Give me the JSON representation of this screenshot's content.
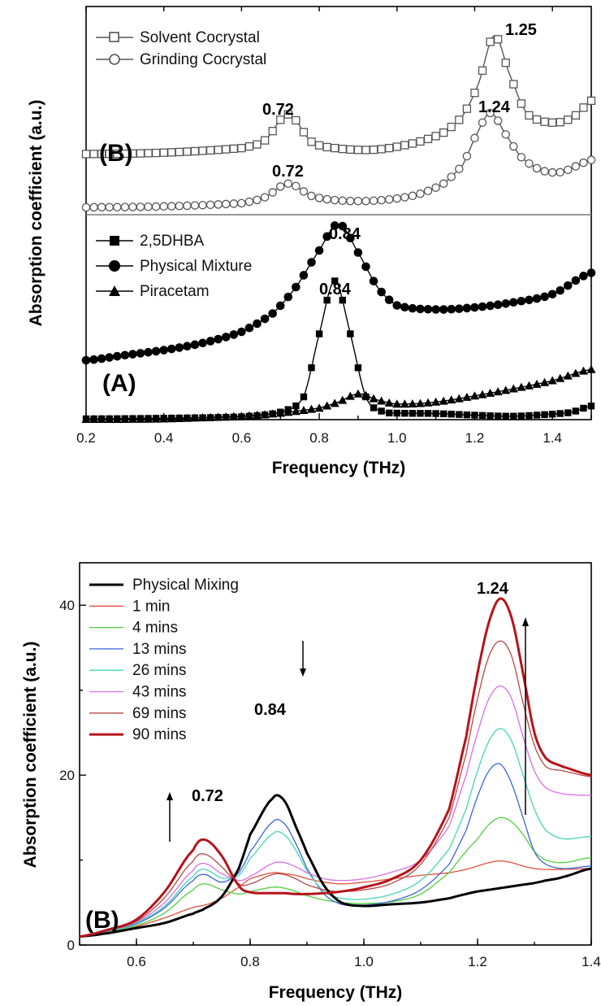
{
  "chart_data": [
    {
      "type": "line",
      "xlabel": "Frequency (THz)",
      "ylabel": "Absorption coefficient (a.u.)",
      "xlim": [
        0.2,
        1.5
      ],
      "x_ticks": [
        "0.2",
        "0.4",
        "0.6",
        "0.8",
        "1.0",
        "1.2",
        "1.4"
      ],
      "grid": false,
      "legend_placement": "top-left",
      "panels": [
        {
          "tag": "(B)",
          "series": [
            {
              "name": "Solvent Cocrystal",
              "marker": "open-square",
              "color": "#555555",
              "x": [
                0.2,
                0.4,
                0.6,
                0.66,
                0.72,
                0.78,
                0.85,
                0.95,
                1.05,
                1.12,
                1.17,
                1.21,
                1.25,
                1.29,
                1.33,
                1.37,
                1.42,
                1.46,
                1.5
              ],
              "y": [
                1.35,
                1.38,
                1.48,
                1.65,
                2.22,
                1.62,
                1.47,
                1.45,
                1.6,
                1.82,
                2.2,
                2.9,
                3.95,
                3.1,
                2.3,
                2.08,
                2.05,
                2.2,
                2.52
              ]
            },
            {
              "name": "Grinding Cocrystal",
              "marker": "open-circle",
              "color": "#555555",
              "x": [
                0.2,
                0.4,
                0.6,
                0.66,
                0.72,
                0.78,
                0.85,
                0.95,
                1.05,
                1.12,
                1.17,
                1.2,
                1.24,
                1.28,
                1.32,
                1.37,
                1.42,
                1.46,
                1.5
              ],
              "y": [
                0.18,
                0.2,
                0.27,
                0.4,
                0.7,
                0.43,
                0.33,
                0.33,
                0.45,
                0.7,
                1.12,
                1.7,
                2.25,
                1.78,
                1.28,
                1.0,
                0.95,
                1.08,
                1.22
              ]
            }
          ],
          "annotations": [
            {
              "text": "0.72",
              "x": 0.72,
              "series": "Solvent Cocrystal"
            },
            {
              "text": "1.25",
              "x": 1.25,
              "series": "Solvent Cocrystal"
            },
            {
              "text": "0.72",
              "x": 0.72,
              "series": "Grinding Cocrystal"
            },
            {
              "text": "1.24",
              "x": 1.24,
              "series": "Grinding Cocrystal"
            }
          ]
        },
        {
          "tag": "(A)",
          "series": [
            {
              "name": "2,5DHBA",
              "marker": "filled-square",
              "color": "#000000",
              "x": [
                0.2,
                0.4,
                0.6,
                0.7,
                0.76,
                0.8,
                0.84,
                0.88,
                0.92,
                0.96,
                1.0,
                1.1,
                1.2,
                1.3,
                1.4,
                1.45,
                1.5
              ],
              "y": [
                0.12,
                0.15,
                0.22,
                0.45,
                1.2,
                4.3,
                6.9,
                4.3,
                1.2,
                0.5,
                0.4,
                0.38,
                0.3,
                0.25,
                0.35,
                0.45,
                0.75
              ]
            },
            {
              "name": "Physical Mixture",
              "marker": "filled-circle",
              "color": "#000000",
              "x": [
                0.2,
                0.3,
                0.4,
                0.5,
                0.6,
                0.68,
                0.74,
                0.8,
                0.85,
                0.9,
                0.95,
                1.0,
                1.1,
                1.2,
                1.3,
                1.4,
                1.5
              ],
              "y": [
                3.0,
                3.25,
                3.5,
                3.85,
                4.4,
                5.3,
                6.6,
                8.4,
                9.7,
                8.3,
                6.6,
                5.7,
                5.5,
                5.6,
                5.85,
                6.25,
                7.3
              ]
            },
            {
              "name": "Piracetam",
              "marker": "filled-triangle",
              "color": "#000000",
              "x": [
                0.2,
                0.4,
                0.6,
                0.7,
                0.8,
                0.85,
                0.9,
                0.95,
                1.0,
                1.1,
                1.2,
                1.3,
                1.4,
                1.5
              ],
              "y": [
                0.1,
                0.12,
                0.25,
                0.4,
                0.65,
                0.95,
                1.35,
                1.05,
                0.85,
                0.95,
                1.25,
                1.6,
                2.0,
                2.55
              ]
            }
          ],
          "annotations": [
            {
              "text": "0.84",
              "x": 0.84,
              "series": "Physical Mixture"
            },
            {
              "text": "0.84",
              "x": 0.84,
              "series": "2,5DHBA"
            }
          ]
        }
      ]
    },
    {
      "type": "line",
      "tag": "(B)",
      "xlabel": "Frequency (THz)",
      "ylabel": "Absorption coefficient (a.u.)",
      "xlim": [
        0.5,
        1.4
      ],
      "ylim": [
        0,
        45
      ],
      "x_ticks": [
        "0.6",
        "0.8",
        "1.0",
        "1.2",
        "1.4"
      ],
      "y_ticks": [
        "0",
        "20",
        "40"
      ],
      "grid": false,
      "legend_placement": "top-left",
      "x": [
        0.5,
        0.55,
        0.6,
        0.65,
        0.7,
        0.72,
        0.75,
        0.78,
        0.8,
        0.84,
        0.86,
        0.88,
        0.9,
        0.93,
        0.96,
        1.0,
        1.05,
        1.1,
        1.15,
        1.18,
        1.2,
        1.22,
        1.24,
        1.26,
        1.28,
        1.3,
        1.32,
        1.35,
        1.4
      ],
      "series": [
        {
          "name": "Physical Mixing",
          "color": "#000000",
          "width": 3,
          "values": [
            1.0,
            1.4,
            2.0,
            2.6,
            3.7,
            4.3,
            5.7,
            9.0,
            13.0,
            17.3,
            17.0,
            14.0,
            10.8,
            7.0,
            5.0,
            4.6,
            4.8,
            5.0,
            5.5,
            6.0,
            6.3,
            6.5,
            6.7,
            6.9,
            7.1,
            7.3,
            7.6,
            8.0,
            9.0
          ]
        },
        {
          "name": "1 min",
          "color": "#e0523c",
          "width": 1.3,
          "values": [
            1.0,
            1.5,
            2.2,
            3.2,
            4.4,
            4.7,
            5.5,
            6.8,
            7.8,
            8.5,
            8.4,
            8.2,
            7.8,
            7.4,
            7.2,
            7.4,
            7.8,
            8.2,
            8.5,
            8.9,
            9.3,
            9.7,
            9.9,
            9.7,
            9.3,
            9.0,
            8.9,
            8.9,
            9.0
          ]
        },
        {
          "name": "4 mins",
          "color": "#4fcf3e",
          "width": 1.3,
          "values": [
            1.0,
            1.5,
            2.3,
            3.8,
            6.5,
            7.2,
            6.5,
            6.0,
            6.3,
            6.8,
            6.7,
            6.3,
            5.8,
            5.3,
            5.0,
            4.9,
            5.1,
            6.0,
            8.5,
            11.0,
            12.5,
            14.2,
            15.0,
            14.5,
            13.0,
            11.0,
            10.0,
            9.7,
            10.3
          ]
        },
        {
          "name": "13 mins",
          "color": "#3a66d6",
          "width": 1.3,
          "values": [
            1.0,
            1.6,
            2.5,
            4.4,
            7.6,
            8.3,
            7.4,
            8.5,
            11.0,
            14.5,
            14.3,
            12.0,
            9.0,
            6.0,
            4.8,
            4.7,
            5.2,
            6.5,
            9.5,
            13.5,
            17.5,
            20.5,
            21.3,
            19.0,
            15.0,
            11.0,
            9.5,
            9.0,
            9.3
          ]
        },
        {
          "name": "26 mins",
          "color": "#44d6b6",
          "width": 1.3,
          "values": [
            1.0,
            1.6,
            2.6,
            4.6,
            8.1,
            8.9,
            7.9,
            8.2,
            10.2,
            13.1,
            13.0,
            11.2,
            8.7,
            6.3,
            5.5,
            5.4,
            6.0,
            7.6,
            11.3,
            16.0,
            20.5,
            24.0,
            25.5,
            24.0,
            20.0,
            16.0,
            13.5,
            12.5,
            12.8
          ]
        },
        {
          "name": "43 mins",
          "color": "#d86ee8",
          "width": 1.3,
          "values": [
            1.0,
            1.7,
            2.7,
            5.0,
            8.8,
            9.6,
            8.4,
            7.6,
            8.1,
            9.6,
            9.7,
            9.2,
            8.5,
            7.8,
            7.6,
            7.8,
            8.6,
            10.0,
            14.0,
            20.0,
            25.0,
            29.0,
            30.5,
            29.0,
            24.5,
            20.5,
            18.5,
            17.8,
            17.6
          ]
        },
        {
          "name": "69 mins",
          "color": "#b84848",
          "width": 1.3,
          "values": [
            1.0,
            1.7,
            2.8,
            5.6,
            9.9,
            10.7,
            9.2,
            7.2,
            7.2,
            8.3,
            8.3,
            7.8,
            7.1,
            6.5,
            6.3,
            6.5,
            7.3,
            9.5,
            15.0,
            22.5,
            29.0,
            34.0,
            35.8,
            34.0,
            28.5,
            23.5,
            21.0,
            20.5,
            19.8
          ]
        },
        {
          "name": "90 mins",
          "color": "#b5141c",
          "width": 3,
          "values": [
            1.0,
            1.8,
            3.0,
            6.3,
            11.2,
            12.4,
            10.5,
            7.0,
            6.2,
            6.1,
            6.1,
            6.0,
            6.0,
            6.1,
            6.3,
            6.8,
            7.8,
            10.0,
            16.0,
            24.5,
            32.0,
            38.0,
            40.8,
            38.5,
            32.0,
            25.0,
            22.0,
            21.0,
            20.0
          ]
        }
      ],
      "annotations": [
        {
          "text": "0.72",
          "x": 0.72
        },
        {
          "text": "0.84",
          "x": 0.84
        },
        {
          "text": "1.24",
          "x": 1.24
        }
      ]
    }
  ]
}
